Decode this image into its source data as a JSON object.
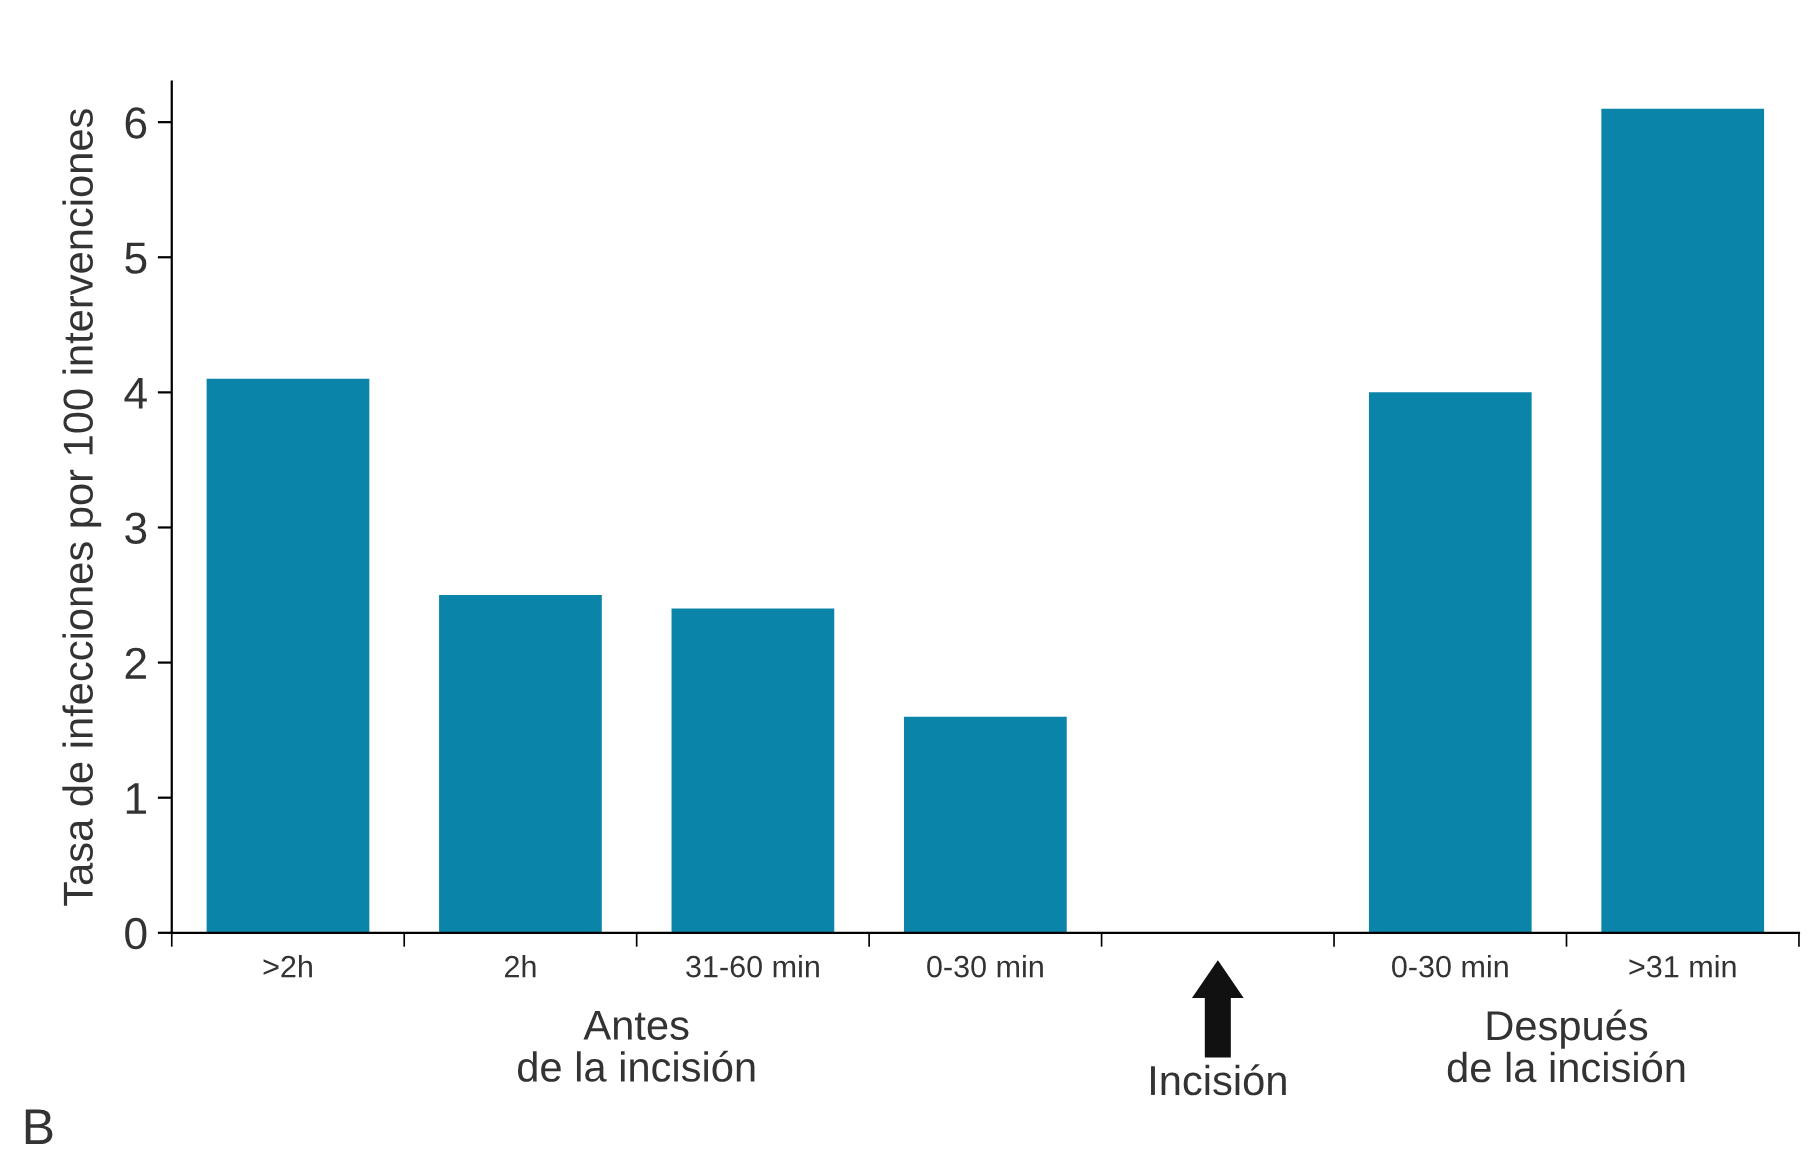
{
  "chart_data": {
    "type": "bar",
    "ylabel": "Tasa de infecciones por 100 intervenciones",
    "categories": [
      ">2h",
      "2h",
      "31-60 min",
      "0-30 min",
      null,
      "0-30 min",
      ">31 min"
    ],
    "values": [
      4.1,
      2.5,
      2.4,
      1.6,
      null,
      4.0,
      6.1
    ],
    "color": "#0a84a8",
    "ylim": [
      0,
      6.3
    ],
    "yticks": [
      0,
      1,
      2,
      3,
      4,
      5,
      6
    ],
    "grid": false,
    "annotations": [
      "Antes\nde la incisión",
      "Incisión",
      "Después\nde la incisión",
      "B"
    ]
  }
}
